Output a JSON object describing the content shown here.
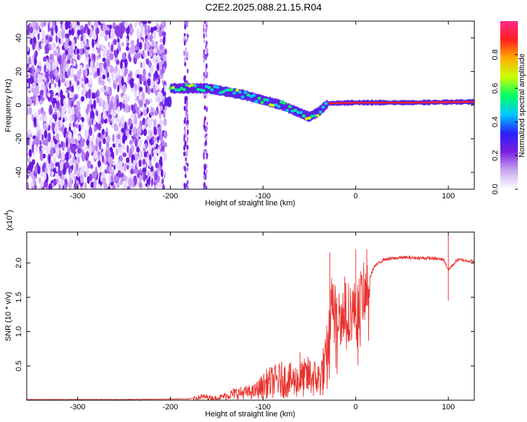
{
  "title": "C2E2.2025.088.21.15.R04",
  "chart_data": [
    {
      "type": "heatmap",
      "xlabel": "Height of straight line (km)",
      "ylabel": "Frequency (Hz)",
      "xlim": [
        -355,
        128
      ],
      "ylim": [
        -50,
        50
      ],
      "x_ticks": [
        -300,
        -200,
        -100,
        0,
        100
      ],
      "y_ticks": [
        -40,
        -20,
        0,
        20,
        40
      ],
      "colorbar": {
        "label": "Normalized spectral amplitude",
        "range": [
          0,
          1
        ],
        "ticks": [
          "0.0",
          "0.2",
          "0.4",
          "0.6",
          "0.8"
        ],
        "colors": [
          "#ffffff",
          "#c8a8f0",
          "#7a1fe0",
          "#2a1fff",
          "#00c8ff",
          "#00ff66",
          "#c8ff00",
          "#ffb000",
          "#ff2020",
          "#ff2a8c"
        ]
      },
      "ridge": [
        {
          "x": -200,
          "y": 10
        },
        {
          "x": -160,
          "y": 10
        },
        {
          "x": -120,
          "y": 6
        },
        {
          "x": -80,
          "y": 0
        },
        {
          "x": -50,
          "y": -7
        },
        {
          "x": -40,
          "y": -4
        },
        {
          "x": -30,
          "y": 1
        },
        {
          "x": 0,
          "y": 1.5
        },
        {
          "x": 60,
          "y": 1.5
        },
        {
          "x": 128,
          "y": 2
        }
      ]
    },
    {
      "type": "line",
      "xlabel": "Height of straight line (km)",
      "ylabel": "SNR (10 * v/v)",
      "y_multiplier": "(x10",
      "y_multiplier_exp": "4",
      "y_multiplier_close": ")",
      "xlim": [
        -355,
        128
      ],
      "ylim": [
        0,
        2.45
      ],
      "x_ticks": [
        -300,
        -200,
        -100,
        0,
        100
      ],
      "y_ticks": [
        "0.5",
        "1.0",
        "1.5",
        "2.0"
      ],
      "series": [
        {
          "color": "#e8322d",
          "points": [
            [
              -355,
              0.01
            ],
            [
              -250,
              0.01
            ],
            [
              -180,
              0.02
            ],
            [
              -165,
              0.05
            ],
            [
              -150,
              0.03
            ],
            [
              -130,
              0.1
            ],
            [
              -110,
              0.12
            ],
            [
              -95,
              0.25
            ],
            [
              -80,
              0.3
            ],
            [
              -65,
              0.28
            ],
            [
              -50,
              0.35
            ],
            [
              -40,
              0.3
            ],
            [
              -32,
              0.5
            ],
            [
              -28,
              1.0
            ],
            [
              -25,
              1.6
            ],
            [
              -20,
              1.2
            ],
            [
              -10,
              1.3
            ],
            [
              0,
              1.3
            ],
            [
              10,
              1.6
            ],
            [
              20,
              1.95
            ],
            [
              30,
              2.05
            ],
            [
              50,
              2.08
            ],
            [
              80,
              2.07
            ],
            [
              95,
              2.05
            ],
            [
              100,
              1.9
            ],
            [
              110,
              2.05
            ],
            [
              128,
              2.02
            ]
          ],
          "spikes": [
            [
              -60,
              0.7
            ],
            [
              -28,
              2.15
            ],
            [
              -12,
              1.8
            ],
            [
              0,
              2.2
            ],
            [
              12,
              2.2
            ],
            [
              100,
              2.4
            ],
            [
              100,
              1.45
            ]
          ]
        }
      ]
    }
  ]
}
